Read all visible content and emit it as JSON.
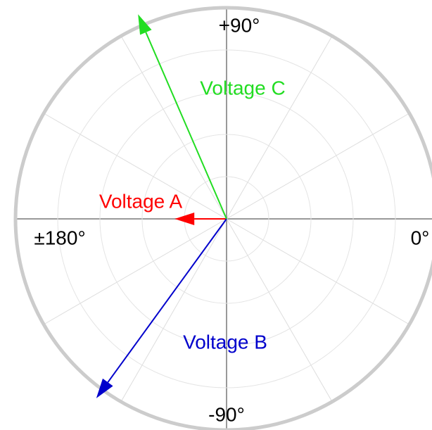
{
  "chart_data": {
    "type": "phasor",
    "rlim": [
      0,
      5
    ],
    "rticks": [
      1,
      2,
      3,
      4,
      5
    ],
    "angle_grid_step": 30,
    "angle_ticks": [
      {
        "value": 90,
        "label": "+90°"
      },
      {
        "value": 180,
        "label": "±180°"
      },
      {
        "value": 0,
        "label": "0°"
      },
      {
        "value": -90,
        "label": "-90°"
      }
    ],
    "series": [
      {
        "name": "Voltage A",
        "color": "#ff0000",
        "magnitude": 1.23,
        "angle": 180
      },
      {
        "name": "Voltage B",
        "color": "#0000cc",
        "magnitude": 5.25,
        "angle": -126
      },
      {
        "name": "Voltage C",
        "color": "#22dd22",
        "magnitude": 5.28,
        "angle": 113.4
      }
    ]
  }
}
